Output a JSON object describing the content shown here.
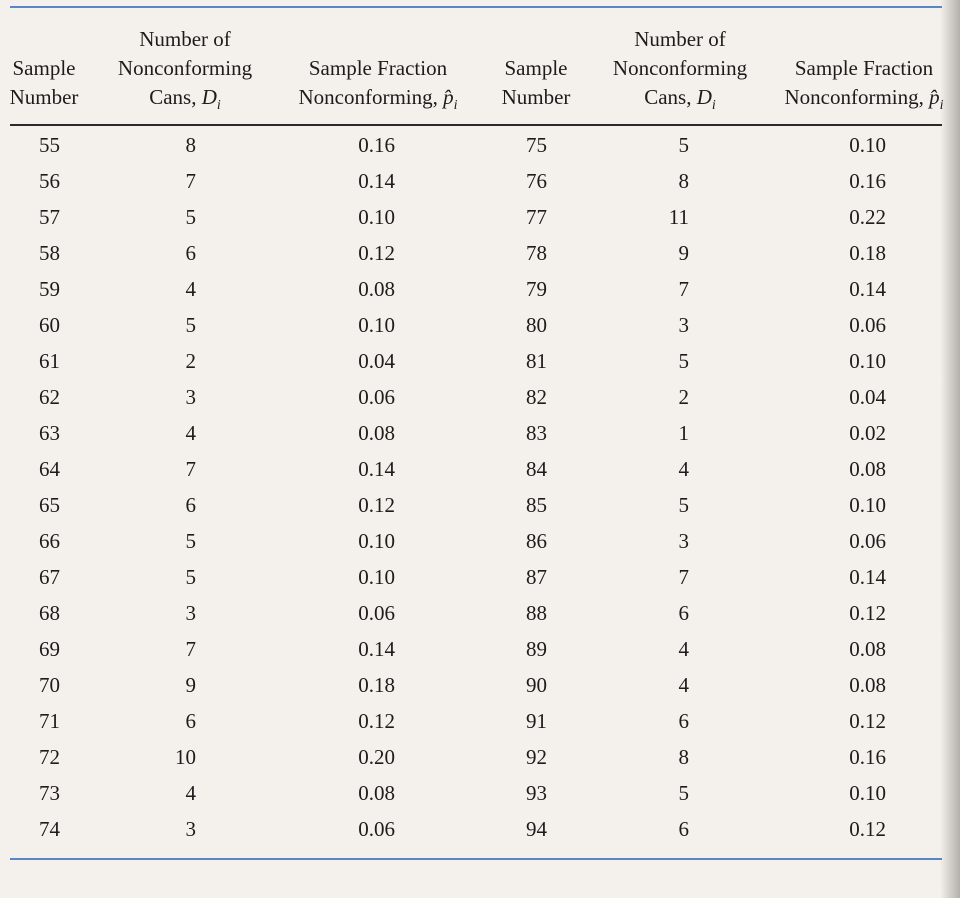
{
  "headers": {
    "left": {
      "sample_number": [
        "Sample",
        "Number"
      ],
      "nonconforming": [
        "Number of",
        "Nonconforming",
        "Cans, "
      ],
      "fraction": [
        "Sample Fraction",
        "Nonconforming, "
      ]
    },
    "right": {
      "sample_number": [
        "Sample",
        "Number"
      ],
      "nonconforming": [
        "Number of",
        "Nonconforming",
        "Cans, "
      ],
      "fraction": [
        "Sample Fraction",
        "Nonconforming, "
      ]
    },
    "d_symbol": "D",
    "d_subscript": "i",
    "p_symbol": "p̂",
    "p_subscript": "i"
  },
  "rows": [
    [
      "55",
      "8",
      "0.16",
      "75",
      "5",
      "0.10"
    ],
    [
      "56",
      "7",
      "0.14",
      "76",
      "8",
      "0.16"
    ],
    [
      "57",
      "5",
      "0.10",
      "77",
      "11",
      "0.22"
    ],
    [
      "58",
      "6",
      "0.12",
      "78",
      "9",
      "0.18"
    ],
    [
      "59",
      "4",
      "0.08",
      "79",
      "7",
      "0.14"
    ],
    [
      "60",
      "5",
      "0.10",
      "80",
      "3",
      "0.06"
    ],
    [
      "61",
      "2",
      "0.04",
      "81",
      "5",
      "0.10"
    ],
    [
      "62",
      "3",
      "0.06",
      "82",
      "2",
      "0.04"
    ],
    [
      "63",
      "4",
      "0.08",
      "83",
      "1",
      "0.02"
    ],
    [
      "64",
      "7",
      "0.14",
      "84",
      "4",
      "0.08"
    ],
    [
      "65",
      "6",
      "0.12",
      "85",
      "5",
      "0.10"
    ],
    [
      "66",
      "5",
      "0.10",
      "86",
      "3",
      "0.06"
    ],
    [
      "67",
      "5",
      "0.10",
      "87",
      "7",
      "0.14"
    ],
    [
      "68",
      "3",
      "0.06",
      "88",
      "6",
      "0.12"
    ],
    [
      "69",
      "7",
      "0.14",
      "89",
      "4",
      "0.08"
    ],
    [
      "70",
      "9",
      "0.18",
      "90",
      "4",
      "0.08"
    ],
    [
      "71",
      "6",
      "0.12",
      "91",
      "6",
      "0.12"
    ],
    [
      "72",
      "10",
      "0.20",
      "92",
      "8",
      "0.16"
    ],
    [
      "73",
      "4",
      "0.08",
      "93",
      "5",
      "0.10"
    ],
    [
      "74",
      "3",
      "0.06",
      "94",
      "6",
      "0.12"
    ]
  ]
}
